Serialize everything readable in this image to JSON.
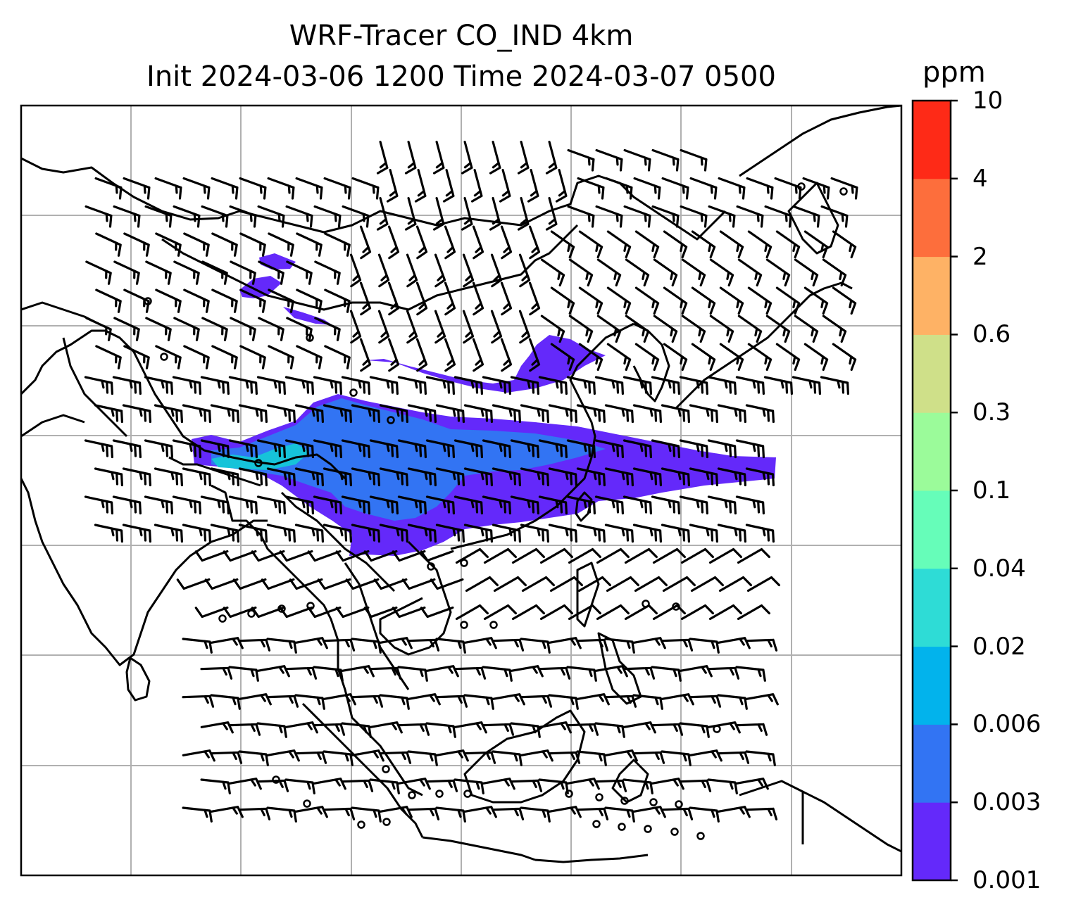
{
  "title": {
    "line1": "WRF-Tracer CO_IND 4km",
    "line2": "Init 2024-03-06 1200 Time 2024-03-07 0500"
  },
  "colorbar": {
    "unit": "ppm",
    "levels": [
      "0.001",
      "0.003",
      "0.006",
      "0.02",
      "0.04",
      "0.1",
      "0.3",
      "0.6",
      "2",
      "4",
      "10"
    ],
    "colors": [
      "#6429fa",
      "#3274f3",
      "#02b3ec",
      "#2edcd6",
      "#66fdb9",
      "#9bfb9a",
      "#cfe089",
      "#feb265",
      "#fd6e3c",
      "#fe2a17"
    ]
  },
  "map": {
    "gridlines": true,
    "background": "#ffffff",
    "coastline_color": "#000000",
    "plume_colors": [
      "#6429fa",
      "#3274f3",
      "#16c3d9"
    ]
  }
}
